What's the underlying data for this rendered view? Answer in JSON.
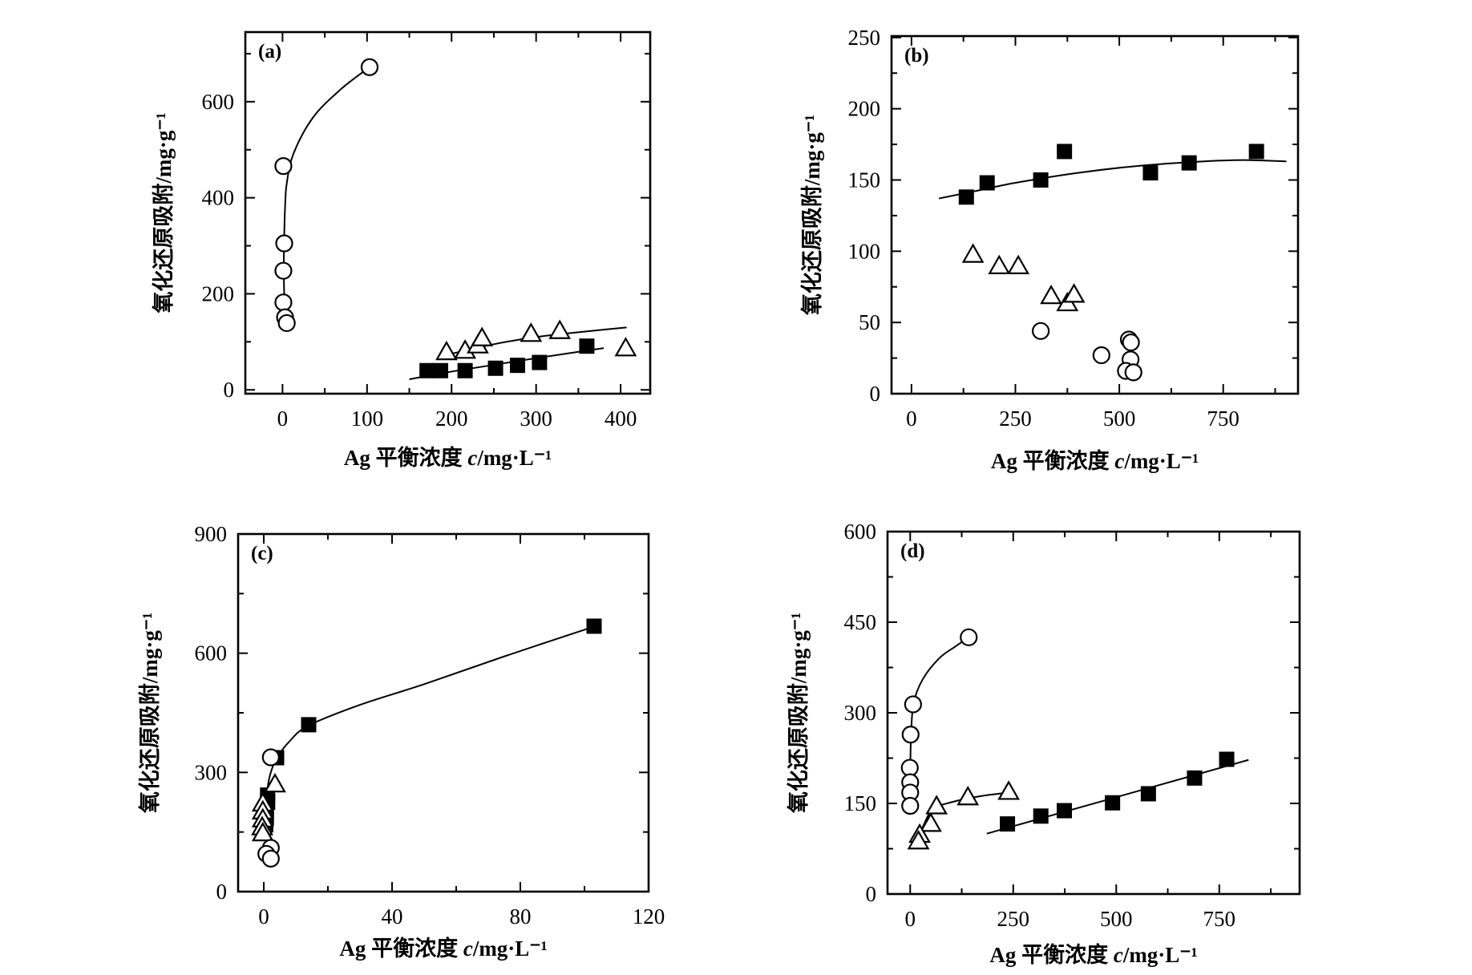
{
  "chart_data": [
    {
      "type": "scatter",
      "panel_label": "(a)",
      "xlabel": "Ag 平衡浓度 c/mg·L⁻¹",
      "ylabel": "氧化还原吸附/mg·g⁻¹",
      "xlim": [
        -44,
        435
      ],
      "ylim": [
        -8,
        745
      ],
      "xticks": [
        0,
        100,
        200,
        300,
        400
      ],
      "xminor": 50,
      "yticks": [
        0,
        200,
        400,
        600
      ],
      "yminor": 100,
      "grid": false,
      "series": [
        {
          "marker": "circle-open",
          "points": [
            [
              1,
              466
            ],
            [
              2,
              305
            ],
            [
              1,
              248
            ],
            [
              1,
              182
            ],
            [
              3,
              151
            ],
            [
              5,
              139
            ],
            [
              103,
              672
            ]
          ],
          "curve": [
            [
              4,
              140
            ],
            [
              2,
              200
            ],
            [
              1.5,
              260
            ],
            [
              2,
              320
            ],
            [
              3,
              380
            ],
            [
              5,
              430
            ],
            [
              13,
              492
            ],
            [
              36,
              567
            ],
            [
              69,
              626
            ],
            [
              103,
              672
            ]
          ]
        },
        {
          "marker": "triangle-open",
          "points": [
            [
              194,
              77
            ],
            [
              216,
              80
            ],
            [
              231,
              91
            ],
            [
              236,
              106
            ],
            [
              294,
              115
            ],
            [
              328,
              121
            ],
            [
              406,
              85
            ]
          ],
          "curve": [
            [
              192,
              72
            ],
            [
              250,
              95
            ],
            [
              300,
              110
            ],
            [
              350,
              120
            ],
            [
              407,
              130
            ]
          ]
        },
        {
          "marker": "square-filled",
          "points": [
            [
              171,
              40
            ],
            [
              187,
              40
            ],
            [
              216,
              40
            ],
            [
              252,
              45
            ],
            [
              278,
              51
            ],
            [
              304,
              57
            ],
            [
              360,
              91
            ]
          ],
          "curve": [
            [
              150,
              22
            ],
            [
              200,
              38
            ],
            [
              250,
              52
            ],
            [
              300,
              66
            ],
            [
              380,
              87
            ]
          ]
        }
      ]
    },
    {
      "type": "scatter",
      "panel_label": "(b)",
      "xlabel": "Ag 平衡浓度 c/mg·L⁻¹",
      "ylabel": "氧化还原吸附/mg·g⁻¹",
      "xlim": [
        -48,
        930
      ],
      "ylim": [
        0,
        251
      ],
      "xticks": [
        0,
        250,
        500,
        750
      ],
      "xminor": 125,
      "yticks": [
        0,
        50,
        100,
        150,
        200,
        250
      ],
      "yminor": 25,
      "grid": false,
      "series": [
        {
          "marker": "square-filled",
          "points": [
            [
              132,
              138
            ],
            [
              182,
              148
            ],
            [
              311,
              150
            ],
            [
              368,
              170
            ],
            [
              575,
              155
            ],
            [
              668,
              162
            ],
            [
              830,
              170
            ]
          ],
          "curve": [
            [
              66,
              137
            ],
            [
              150,
              142
            ],
            [
              250,
              148
            ],
            [
              400,
              155
            ],
            [
              550,
              160
            ],
            [
              700,
              163
            ],
            [
              800,
              164
            ],
            [
              902,
              163
            ]
          ]
        },
        {
          "marker": "triangle-open",
          "points": [
            [
              148,
              97
            ],
            [
              211,
              89
            ],
            [
              257,
              89
            ],
            [
              336,
              68
            ],
            [
              375,
              63
            ],
            [
              391,
              69
            ]
          ],
          "curve": []
        },
        {
          "marker": "circle-open",
          "points": [
            [
              311,
              44
            ],
            [
              457,
              27
            ],
            [
              523,
              38
            ],
            [
              528,
              36
            ],
            [
              527,
              24
            ],
            [
              516,
              16
            ],
            [
              534,
              15
            ]
          ],
          "curve": []
        }
      ]
    },
    {
      "type": "scatter",
      "panel_label": "(c)",
      "xlabel": "Ag 平衡浓度 c/mg·L⁻¹",
      "ylabel": "氧化还原吸附/mg·g⁻¹",
      "xlim": [
        -8,
        120
      ],
      "ylim": [
        0,
        900
      ],
      "xticks": [
        0,
        40,
        80,
        120
      ],
      "xminor": 20,
      "yticks": [
        0,
        300,
        600,
        900
      ],
      "yminor": 150,
      "grid": false,
      "series": [
        {
          "marker": "square-filled",
          "points": [
            [
              103,
              668
            ],
            [
              14,
              420
            ],
            [
              4,
              337
            ],
            [
              1.2,
              243
            ],
            [
              1.2,
              225
            ],
            [
              0.8,
              205
            ],
            [
              0.8,
              185
            ],
            [
              0.6,
              168
            ]
          ],
          "curve": [
            [
              0.2,
              140
            ],
            [
              0.5,
              200
            ],
            [
              1,
              250
            ],
            [
              2,
              295
            ],
            [
              4,
              335
            ],
            [
              8,
              378
            ],
            [
              14,
              418
            ],
            [
              30,
              470
            ],
            [
              50,
              522
            ],
            [
              75,
              592
            ],
            [
              103,
              667
            ]
          ]
        },
        {
          "marker": "triangle-open",
          "points": [
            [
              3.5,
              268
            ],
            [
              -0.3,
              220
            ],
            [
              -0.3,
              200
            ],
            [
              -0.3,
              180
            ],
            [
              -0.5,
              160
            ],
            [
              -0.3,
              145
            ]
          ],
          "curve": []
        },
        {
          "marker": "circle-open",
          "points": [
            [
              2.2,
              338
            ],
            [
              2.2,
              110
            ],
            [
              0.8,
              95
            ],
            [
              2.2,
              83
            ]
          ],
          "curve": []
        }
      ]
    },
    {
      "type": "scatter",
      "panel_label": "(d)",
      "xlabel": "Ag 平衡浓度 c/mg·L⁻¹",
      "ylabel": "氧化还原吸附/mg·g⁻¹",
      "xlim": [
        -55,
        945
      ],
      "ylim": [
        0,
        600
      ],
      "xticks": [
        0,
        250,
        500,
        750
      ],
      "xminor": 125,
      "yticks": [
        0,
        150,
        300,
        450,
        600
      ],
      "yminor": 75,
      "grid": false,
      "series": [
        {
          "marker": "circle-open",
          "points": [
            [
              142,
              425
            ],
            [
              7,
              314
            ],
            [
              1,
              264
            ],
            [
              -1,
              209
            ],
            [
              0,
              185
            ],
            [
              0,
              168
            ],
            [
              0,
              146
            ]
          ],
          "curve": [
            [
              -1,
              145
            ],
            [
              0,
              200
            ],
            [
              2,
              260
            ],
            [
              8,
              315
            ],
            [
              30,
              355
            ],
            [
              70,
              390
            ],
            [
              110,
              410
            ],
            [
              142,
              425
            ]
          ]
        },
        {
          "marker": "triangle-open",
          "points": [
            [
              64,
              144
            ],
            [
              140,
              159
            ],
            [
              239,
              168
            ],
            [
              50,
              115
            ],
            [
              23,
              97
            ],
            [
              20,
              86
            ]
          ],
          "curve": [
            [
              15,
              80
            ],
            [
              30,
              110
            ],
            [
              55,
              140
            ],
            [
              100,
              152
            ],
            [
              170,
              162
            ],
            [
              240,
              168
            ]
          ]
        },
        {
          "marker": "square-filled",
          "points": [
            [
              236,
              116
            ],
            [
              317,
              129
            ],
            [
              374,
              138
            ],
            [
              491,
              151
            ],
            [
              578,
              166
            ],
            [
              690,
              192
            ],
            [
              768,
              223
            ]
          ],
          "curve": [
            [
              186,
              100
            ],
            [
              821,
              222
            ]
          ]
        }
      ]
    }
  ]
}
